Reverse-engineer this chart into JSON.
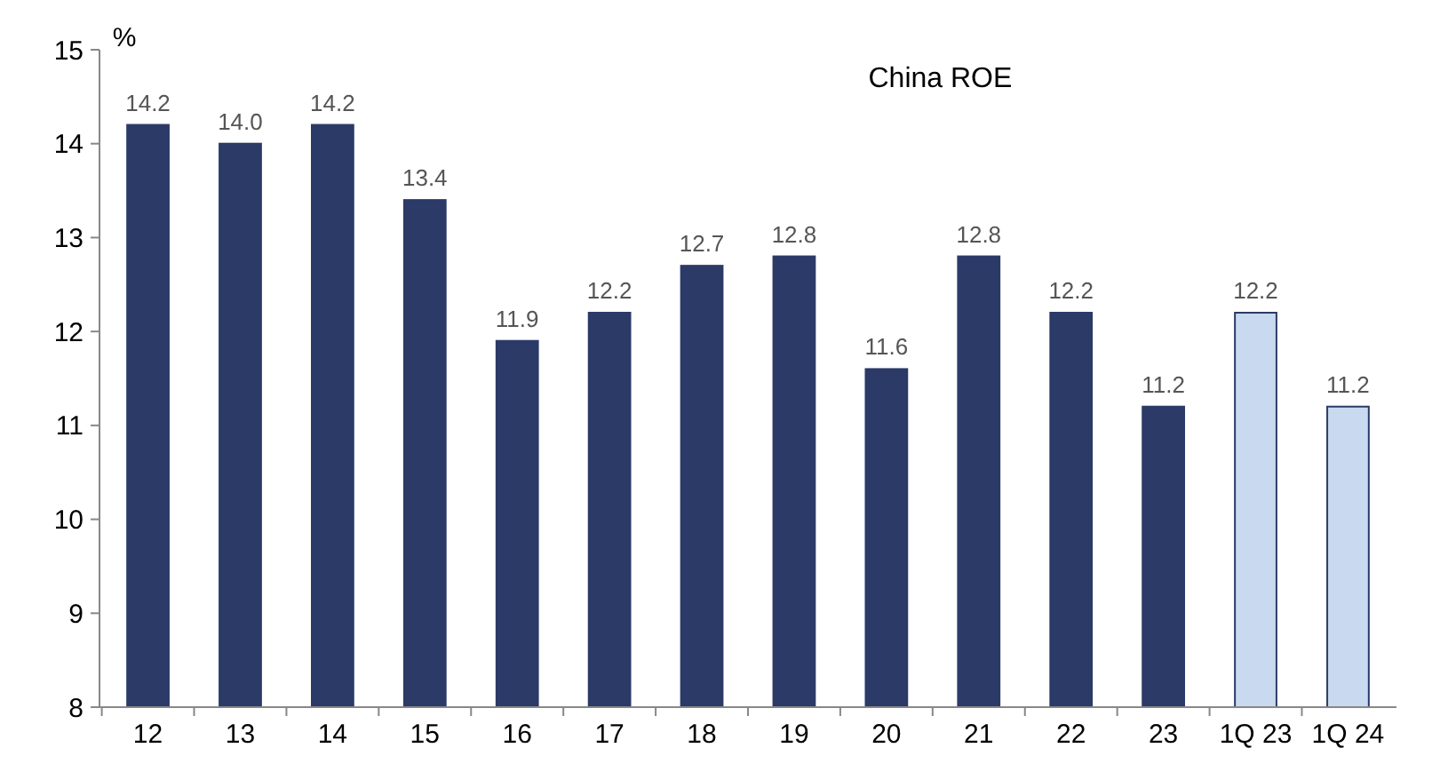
{
  "chart_data": {
    "type": "bar",
    "title": "China ROE",
    "ylabel": "%",
    "categories": [
      "12",
      "13",
      "14",
      "15",
      "16",
      "17",
      "18",
      "19",
      "20",
      "21",
      "22",
      "23",
      "1Q 23",
      "1Q 24"
    ],
    "values": [
      14.2,
      14.0,
      14.2,
      13.4,
      11.9,
      12.2,
      12.7,
      12.8,
      11.6,
      12.8,
      12.2,
      11.2,
      12.2,
      11.2
    ],
    "colors": [
      "#2b3a67",
      "#2b3a67",
      "#2b3a67",
      "#2b3a67",
      "#2b3a67",
      "#2b3a67",
      "#2b3a67",
      "#2b3a67",
      "#2b3a67",
      "#2b3a67",
      "#2b3a67",
      "#2b3a67",
      "#c9daf0",
      "#c9daf0"
    ],
    "value_labels": [
      "14.2",
      "14.0",
      "14.2",
      "13.4",
      "11.9",
      "12.2",
      "12.7",
      "12.8",
      "11.6",
      "12.8",
      "12.2",
      "11.2",
      "12.2",
      "11.2"
    ],
    "ylim": [
      8,
      15
    ],
    "yticks": [
      8,
      9,
      10,
      11,
      12,
      13,
      14,
      15
    ],
    "grid": false
  }
}
